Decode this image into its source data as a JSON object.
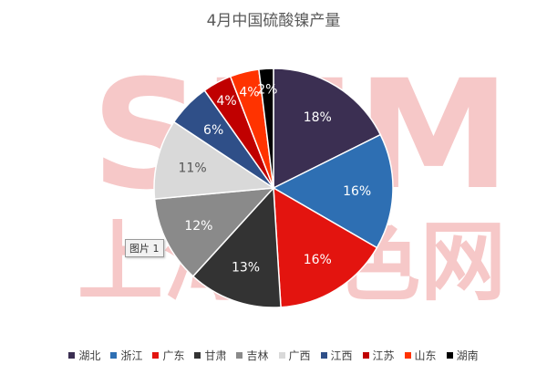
{
  "chart_data": {
    "type": "pie",
    "title": "4月中国硫酸镍产量",
    "categories": [
      "湖北",
      "浙江",
      "广东",
      "甘肃",
      "吉林",
      "广西",
      "江西",
      "江苏",
      "山东",
      "湖南"
    ],
    "values": [
      18,
      16,
      16,
      13,
      12,
      11,
      6,
      4,
      4,
      2
    ],
    "value_labels": [
      "18%",
      "16%",
      "16%",
      "13%",
      "12%",
      "11%",
      "6%",
      "4%",
      "4%",
      "2%"
    ],
    "colors": [
      "#3b2f52",
      "#2e6fb3",
      "#e3140f",
      "#333333",
      "#8a8a8a",
      "#d9d9d9",
      "#2f4f88",
      "#c00000",
      "#ff3300",
      "#000000"
    ],
    "legend_position": "bottom"
  },
  "image_label": "图片 1",
  "watermark": {
    "logo": "SMM",
    "text": "上海有色网"
  }
}
